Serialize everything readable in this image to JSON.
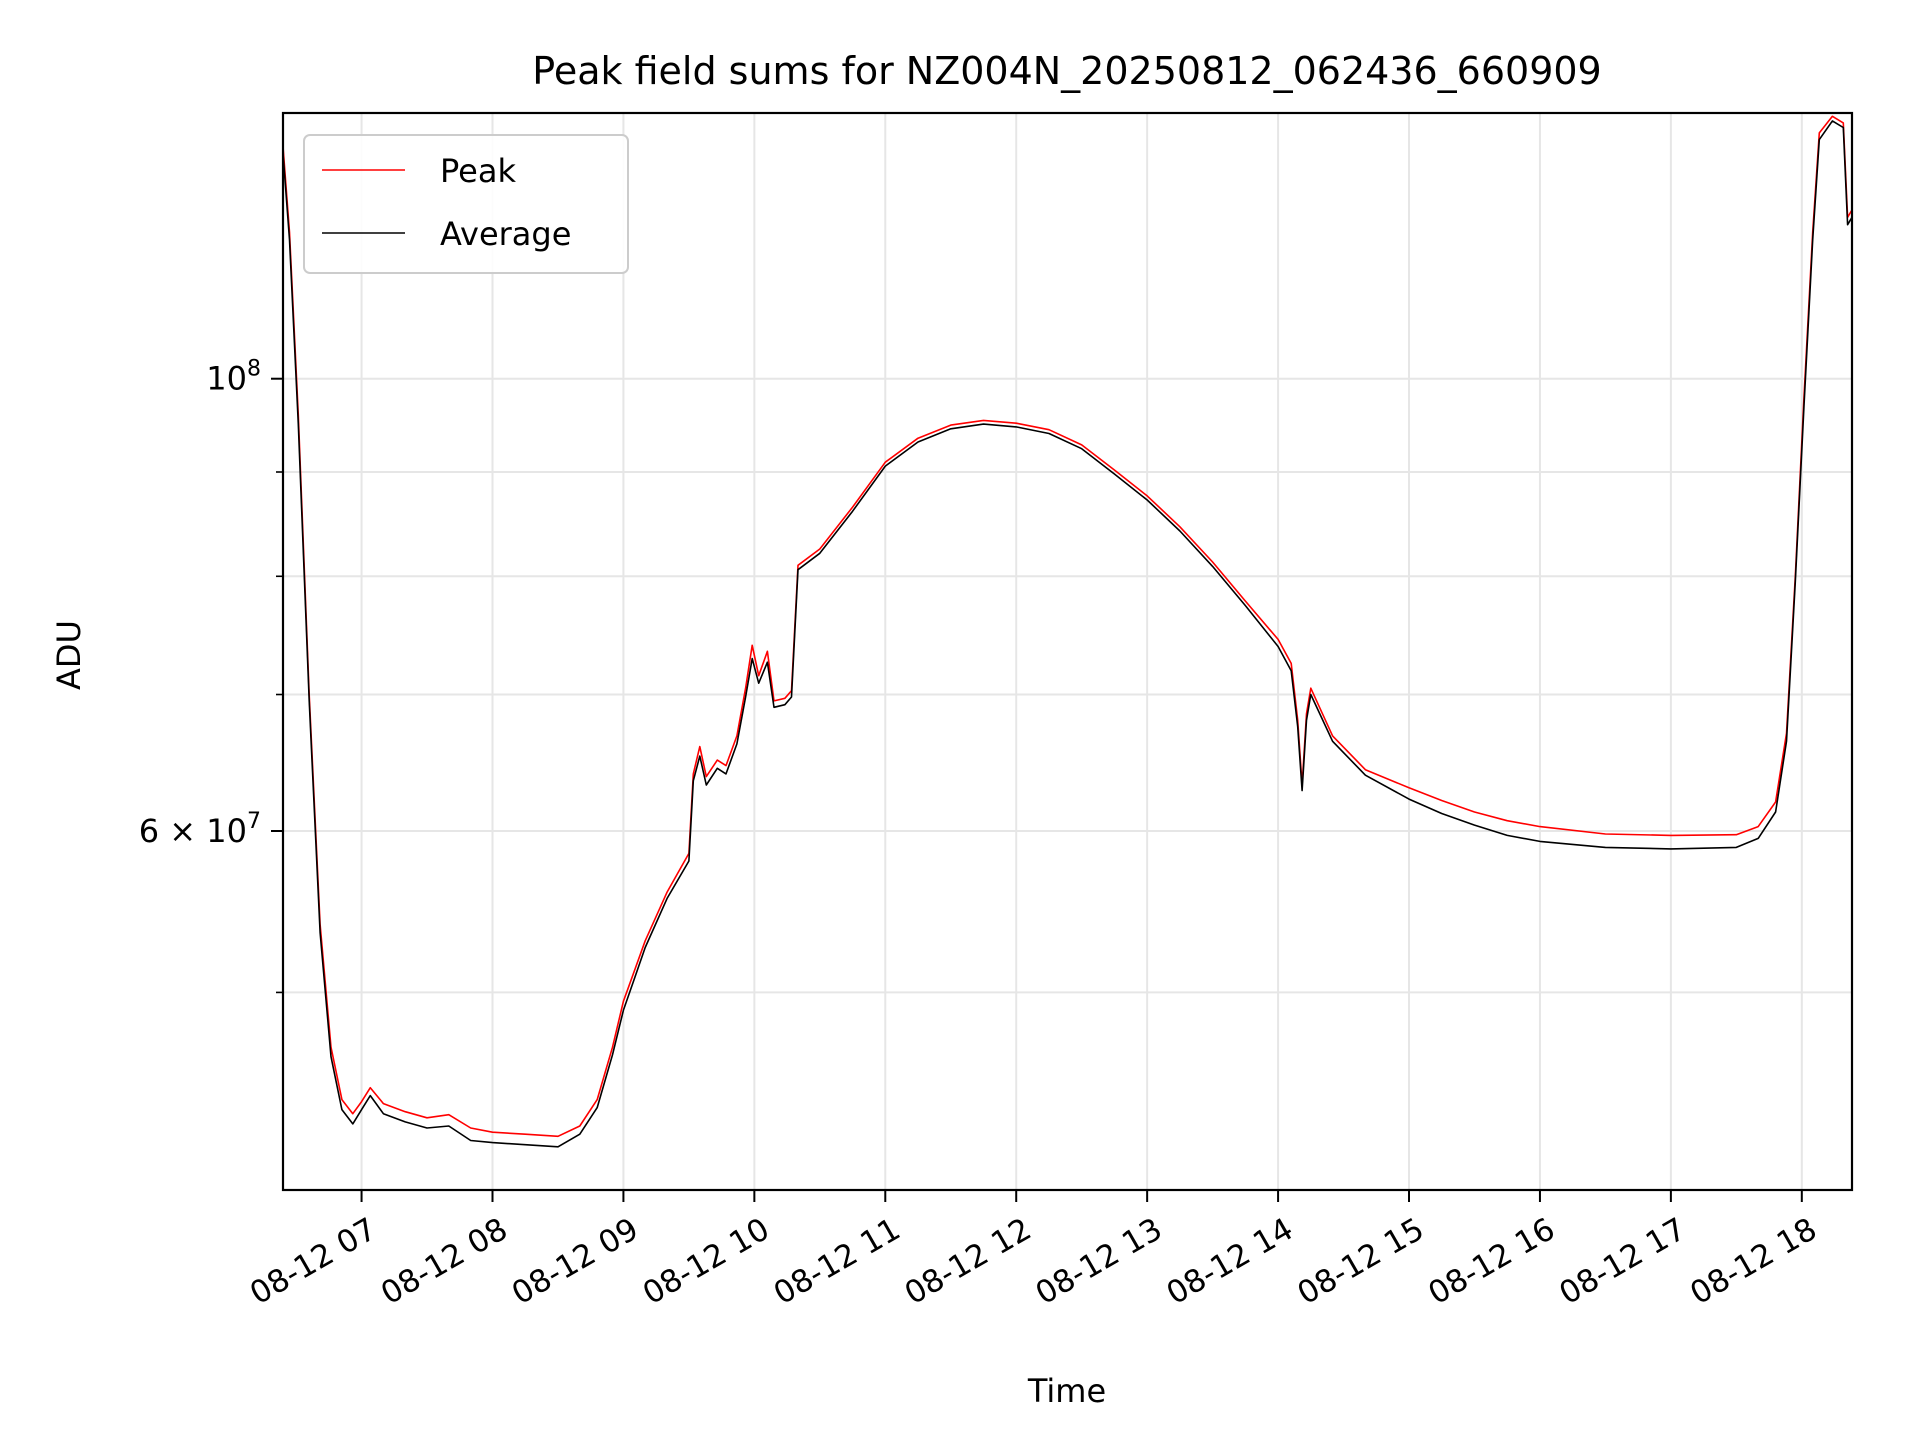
{
  "chart_data": {
    "type": "line",
    "title": "Peak field sums for NZ004N_20250812_062436_660909",
    "xlabel": "Time",
    "ylabel": "ADU",
    "yscale": "log",
    "ylim": [
      40000000,
      135000000
    ],
    "xlim": [
      "2025-08-12 06:24",
      "2025-08-12 18:23"
    ],
    "grid": true,
    "legend_position": "upper-left",
    "x_ticks": [
      {
        "time": "2025-08-12 07:00",
        "label": "08-12 07"
      },
      {
        "time": "2025-08-12 08:00",
        "label": "08-12 08"
      },
      {
        "time": "2025-08-12 09:00",
        "label": "08-12 09"
      },
      {
        "time": "2025-08-12 10:00",
        "label": "08-12 10"
      },
      {
        "time": "2025-08-12 11:00",
        "label": "08-12 11"
      },
      {
        "time": "2025-08-12 12:00",
        "label": "08-12 12"
      },
      {
        "time": "2025-08-12 13:00",
        "label": "08-12 13"
      },
      {
        "time": "2025-08-12 14:00",
        "label": "08-12 14"
      },
      {
        "time": "2025-08-12 15:00",
        "label": "08-12 15"
      },
      {
        "time": "2025-08-12 16:00",
        "label": "08-12 16"
      },
      {
        "time": "2025-08-12 17:00",
        "label": "08-12 17"
      },
      {
        "time": "2025-08-12 18:00",
        "label": "08-12 18"
      }
    ],
    "y_major_ticks": [
      {
        "value": 100000000,
        "base": "10",
        "exp": "8",
        "coef": ""
      },
      {
        "value": 60000000,
        "base": "10",
        "exp": "7",
        "coef": "6 × "
      }
    ],
    "y_minor_ticks": [
      50000000,
      70000000,
      80000000,
      90000000
    ],
    "series": [
      {
        "name": "Peak",
        "color": "#ff0000",
        "points": [
          [
            "2025-08-12 06:24",
            130000000
          ],
          [
            "2025-08-12 06:27",
            118000000
          ],
          [
            "2025-08-12 06:31",
            96000000
          ],
          [
            "2025-08-12 06:36",
            70000000
          ],
          [
            "2025-08-12 06:41",
            54000000
          ],
          [
            "2025-08-12 06:46",
            47000000
          ],
          [
            "2025-08-12 06:51",
            44300000
          ],
          [
            "2025-08-12 06:56",
            43600000
          ],
          [
            "2025-08-12 07:00",
            44200000
          ],
          [
            "2025-08-12 07:04",
            44900000
          ],
          [
            "2025-08-12 07:10",
            44100000
          ],
          [
            "2025-08-12 07:20",
            43700000
          ],
          [
            "2025-08-12 07:30",
            43400000
          ],
          [
            "2025-08-12 07:40",
            43550000
          ],
          [
            "2025-08-12 07:50",
            42900000
          ],
          [
            "2025-08-12 08:00",
            42700000
          ],
          [
            "2025-08-12 08:15",
            42600000
          ],
          [
            "2025-08-12 08:30",
            42500000
          ],
          [
            "2025-08-12 08:40",
            43000000
          ],
          [
            "2025-08-12 08:48",
            44300000
          ],
          [
            "2025-08-12 08:55",
            47000000
          ],
          [
            "2025-08-12 09:00",
            49500000
          ],
          [
            "2025-08-12 09:10",
            53000000
          ],
          [
            "2025-08-12 09:20",
            56000000
          ],
          [
            "2025-08-12 09:30",
            58500000
          ],
          [
            "2025-08-12 09:32",
            64000000
          ],
          [
            "2025-08-12 09:35",
            66000000
          ],
          [
            "2025-08-12 09:38",
            63800000
          ],
          [
            "2025-08-12 09:43",
            65000000
          ],
          [
            "2025-08-12 09:47",
            64600000
          ],
          [
            "2025-08-12 09:52",
            66800000
          ],
          [
            "2025-08-12 09:56",
            70500000
          ],
          [
            "2025-08-12 09:59",
            74000000
          ],
          [
            "2025-08-12 10:02",
            71500000
          ],
          [
            "2025-08-12 10:06",
            73500000
          ],
          [
            "2025-08-12 10:09",
            69500000
          ],
          [
            "2025-08-12 10:14",
            69700000
          ],
          [
            "2025-08-12 10:17",
            70300000
          ],
          [
            "2025-08-12 10:20",
            81000000
          ],
          [
            "2025-08-12 10:30",
            82500000
          ],
          [
            "2025-08-12 10:45",
            86500000
          ],
          [
            "2025-08-12 11:00",
            91000000
          ],
          [
            "2025-08-12 11:15",
            93500000
          ],
          [
            "2025-08-12 11:30",
            94900000
          ],
          [
            "2025-08-12 11:45",
            95400000
          ],
          [
            "2025-08-12 12:00",
            95100000
          ],
          [
            "2025-08-12 12:15",
            94400000
          ],
          [
            "2025-08-12 12:30",
            92800000
          ],
          [
            "2025-08-12 12:45",
            90200000
          ],
          [
            "2025-08-12 13:00",
            87600000
          ],
          [
            "2025-08-12 13:15",
            84600000
          ],
          [
            "2025-08-12 13:30",
            81300000
          ],
          [
            "2025-08-12 13:45",
            77800000
          ],
          [
            "2025-08-12 14:00",
            74500000
          ],
          [
            "2025-08-12 14:06",
            72500000
          ],
          [
            "2025-08-12 14:09",
            68000000
          ],
          [
            "2025-08-12 14:11",
            63200000
          ],
          [
            "2025-08-12 14:13",
            68500000
          ],
          [
            "2025-08-12 14:15",
            70500000
          ],
          [
            "2025-08-12 14:25",
            66800000
          ],
          [
            "2025-08-12 14:40",
            64300000
          ],
          [
            "2025-08-12 15:00",
            63000000
          ],
          [
            "2025-08-12 15:15",
            62100000
          ],
          [
            "2025-08-12 15:30",
            61300000
          ],
          [
            "2025-08-12 15:45",
            60700000
          ],
          [
            "2025-08-12 16:00",
            60300000
          ],
          [
            "2025-08-12 16:30",
            59800000
          ],
          [
            "2025-08-12 17:00",
            59700000
          ],
          [
            "2025-08-12 17:30",
            59750000
          ],
          [
            "2025-08-12 17:40",
            60300000
          ],
          [
            "2025-08-12 17:48",
            62000000
          ],
          [
            "2025-08-12 17:53",
            67000000
          ],
          [
            "2025-08-12 17:57",
            80000000
          ],
          [
            "2025-08-12 18:01",
            98000000
          ],
          [
            "2025-08-12 18:05",
            118000000
          ],
          [
            "2025-08-12 18:08",
            132000000
          ],
          [
            "2025-08-12 18:14",
            134500000
          ],
          [
            "2025-08-12 18:19",
            133500000
          ],
          [
            "2025-08-12 18:21",
            120000000
          ],
          [
            "2025-08-12 18:23",
            121000000
          ]
        ]
      },
      {
        "name": "Average",
        "color": "#000000",
        "points": [
          [
            "2025-08-12 06:24",
            129000000
          ],
          [
            "2025-08-12 06:27",
            117000000
          ],
          [
            "2025-08-12 06:31",
            95000000
          ],
          [
            "2025-08-12 06:36",
            69500000
          ],
          [
            "2025-08-12 06:41",
            53500000
          ],
          [
            "2025-08-12 06:46",
            46500000
          ],
          [
            "2025-08-12 06:51",
            43800000
          ],
          [
            "2025-08-12 06:56",
            43100000
          ],
          [
            "2025-08-12 07:00",
            43800000
          ],
          [
            "2025-08-12 07:04",
            44500000
          ],
          [
            "2025-08-12 07:10",
            43600000
          ],
          [
            "2025-08-12 07:20",
            43200000
          ],
          [
            "2025-08-12 07:30",
            42900000
          ],
          [
            "2025-08-12 07:40",
            43000000
          ],
          [
            "2025-08-12 07:50",
            42300000
          ],
          [
            "2025-08-12 08:00",
            42200000
          ],
          [
            "2025-08-12 08:15",
            42100000
          ],
          [
            "2025-08-12 08:30",
            42000000
          ],
          [
            "2025-08-12 08:40",
            42600000
          ],
          [
            "2025-08-12 08:48",
            43900000
          ],
          [
            "2025-08-12 08:55",
            46600000
          ],
          [
            "2025-08-12 09:00",
            49000000
          ],
          [
            "2025-08-12 09:10",
            52600000
          ],
          [
            "2025-08-12 09:20",
            55600000
          ],
          [
            "2025-08-12 09:30",
            58000000
          ],
          [
            "2025-08-12 09:32",
            63500000
          ],
          [
            "2025-08-12 09:35",
            65300000
          ],
          [
            "2025-08-12 09:38",
            63200000
          ],
          [
            "2025-08-12 09:43",
            64400000
          ],
          [
            "2025-08-12 09:47",
            64000000
          ],
          [
            "2025-08-12 09:52",
            66200000
          ],
          [
            "2025-08-12 09:56",
            69800000
          ],
          [
            "2025-08-12 09:59",
            72900000
          ],
          [
            "2025-08-12 10:02",
            70900000
          ],
          [
            "2025-08-12 10:06",
            72600000
          ],
          [
            "2025-08-12 10:09",
            69000000
          ],
          [
            "2025-08-12 10:14",
            69200000
          ],
          [
            "2025-08-12 10:17",
            69800000
          ],
          [
            "2025-08-12 10:20",
            80600000
          ],
          [
            "2025-08-12 10:30",
            82100000
          ],
          [
            "2025-08-12 10:45",
            86100000
          ],
          [
            "2025-08-12 11:00",
            90600000
          ],
          [
            "2025-08-12 11:15",
            93100000
          ],
          [
            "2025-08-12 11:30",
            94500000
          ],
          [
            "2025-08-12 11:45",
            95000000
          ],
          [
            "2025-08-12 12:00",
            94700000
          ],
          [
            "2025-08-12 12:15",
            94000000
          ],
          [
            "2025-08-12 12:30",
            92400000
          ],
          [
            "2025-08-12 12:45",
            89800000
          ],
          [
            "2025-08-12 13:00",
            87200000
          ],
          [
            "2025-08-12 13:15",
            84200000
          ],
          [
            "2025-08-12 13:30",
            80900000
          ],
          [
            "2025-08-12 13:45",
            77400000
          ],
          [
            "2025-08-12 14:00",
            73900000
          ],
          [
            "2025-08-12 14:06",
            71900000
          ],
          [
            "2025-08-12 14:09",
            67500000
          ],
          [
            "2025-08-12 14:11",
            62800000
          ],
          [
            "2025-08-12 14:13",
            68000000
          ],
          [
            "2025-08-12 14:15",
            70000000
          ],
          [
            "2025-08-12 14:25",
            66400000
          ],
          [
            "2025-08-12 14:40",
            63900000
          ],
          [
            "2025-08-12 15:00",
            62200000
          ],
          [
            "2025-08-12 15:15",
            61200000
          ],
          [
            "2025-08-12 15:30",
            60400000
          ],
          [
            "2025-08-12 15:45",
            59700000
          ],
          [
            "2025-08-12 16:00",
            59300000
          ],
          [
            "2025-08-12 16:30",
            58900000
          ],
          [
            "2025-08-12 17:00",
            58800000
          ],
          [
            "2025-08-12 17:30",
            58900000
          ],
          [
            "2025-08-12 17:40",
            59500000
          ],
          [
            "2025-08-12 17:48",
            61300000
          ],
          [
            "2025-08-12 17:53",
            66400000
          ],
          [
            "2025-08-12 17:57",
            79500000
          ],
          [
            "2025-08-12 18:01",
            97000000
          ],
          [
            "2025-08-12 18:05",
            117000000
          ],
          [
            "2025-08-12 18:08",
            131000000
          ],
          [
            "2025-08-12 18:14",
            133800000
          ],
          [
            "2025-08-12 18:19",
            132800000
          ],
          [
            "2025-08-12 18:21",
            119000000
          ],
          [
            "2025-08-12 18:23",
            120000000
          ]
        ]
      }
    ]
  }
}
